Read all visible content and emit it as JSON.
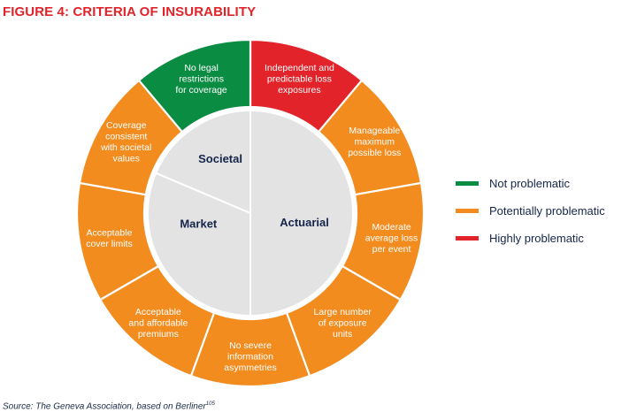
{
  "title": "FIGURE 4: CRITERIA OF INSURABILITY",
  "colors": {
    "not_problematic": "#0b8c43",
    "potentially_problematic": "#f28c1f",
    "highly_problematic": "#e2232a",
    "inner": "#e3e3e3",
    "title": "#e2232a",
    "text_dark": "#15254a"
  },
  "outer_segments": [
    {
      "lines": [
        "Independent and",
        "predictable loss",
        "exposures"
      ],
      "status": "highly_problematic"
    },
    {
      "lines": [
        "Manageable",
        "maximum",
        "possible loss"
      ],
      "status": "potentially_problematic"
    },
    {
      "lines": [
        "Moderate",
        "average loss",
        "per event"
      ],
      "status": "potentially_problematic"
    },
    {
      "lines": [
        "Large number",
        "of exposure",
        "units"
      ],
      "status": "potentially_problematic"
    },
    {
      "lines": [
        "No severe",
        "information",
        "asymmetries"
      ],
      "status": "potentially_problematic"
    },
    {
      "lines": [
        "Acceptable",
        "and affordable",
        "premiums"
      ],
      "status": "potentially_problematic"
    },
    {
      "lines": [
        "Acceptable",
        "cover limits"
      ],
      "status": "potentially_problematic"
    },
    {
      "lines": [
        "Coverage",
        "consistent",
        "with societal",
        "values"
      ],
      "status": "potentially_problematic"
    },
    {
      "lines": [
        "No legal",
        "restrictions",
        "for coverage"
      ],
      "status": "not_problematic"
    }
  ],
  "inner_sections": [
    {
      "label": "Actuarial"
    },
    {
      "label": "Market"
    },
    {
      "label": "Societal"
    }
  ],
  "legend": [
    {
      "label": "Not problematic",
      "status": "not_problematic"
    },
    {
      "label": "Potentially problematic",
      "status": "potentially_problematic"
    },
    {
      "label": "Highly problematic",
      "status": "highly_problematic"
    }
  ],
  "source": {
    "text": "Source: The Geneva Association, based on Berliner",
    "sup": "105"
  }
}
